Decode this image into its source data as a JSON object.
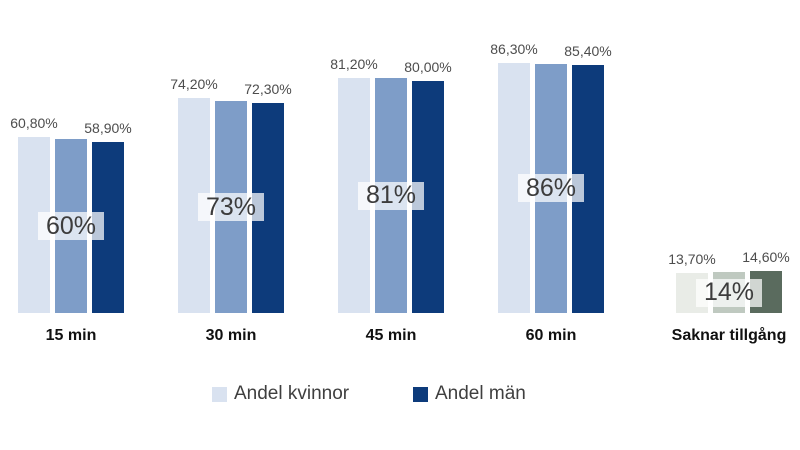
{
  "chart_data": {
    "type": "bar",
    "title": "",
    "categories": [
      "15 min",
      "30 min",
      "45 min",
      "60 min",
      "Saknar tillgång"
    ],
    "series": [
      {
        "name": "Andel kvinnor",
        "values": [
          60.8,
          74.2,
          81.2,
          86.3,
          13.7
        ],
        "data_labels": [
          "60,80%",
          "74,20%",
          "81,20%",
          "86,30%",
          "13,70%"
        ]
      },
      {
        "name": "",
        "values": [
          60,
          73,
          81,
          86,
          14
        ],
        "data_labels": []
      },
      {
        "name": "Andel män",
        "values": [
          58.9,
          72.3,
          80.0,
          85.4,
          14.6
        ],
        "data_labels": [
          "58,90%",
          "72,30%",
          "80,00%",
          "85,40%",
          "14,60%"
        ]
      }
    ],
    "overlay_labels": [
      "60%",
      "73%",
      "81%",
      "86%",
      "14%"
    ],
    "ylim": [
      0,
      100
    ],
    "grid": false,
    "axes_visible": false,
    "legend_position": "bottom",
    "category_palettes": [
      "blue",
      "blue",
      "blue",
      "blue",
      "gray"
    ]
  },
  "legend": {
    "items": [
      {
        "label": "Andel kvinnor",
        "color": "#d9e2f0"
      },
      {
        "label": "Andel män",
        "color": "#0d3b7b"
      }
    ]
  },
  "colors": {
    "blue": {
      "light": "#d9e2f0",
      "mid": "#7e9dc8",
      "dark": "#0d3b7b"
    },
    "gray": {
      "light": "#e9ece7",
      "mid": "#bfc9c0",
      "dark": "#5a6b5e"
    },
    "annotation_text": "#4d4d4d",
    "overlay_text": "#3c3c3c",
    "overlay_bg": "rgba(255,255,255,0.72)",
    "category_text": "#111111",
    "legend_text": "#3f3f3f",
    "background": "#ffffff"
  }
}
